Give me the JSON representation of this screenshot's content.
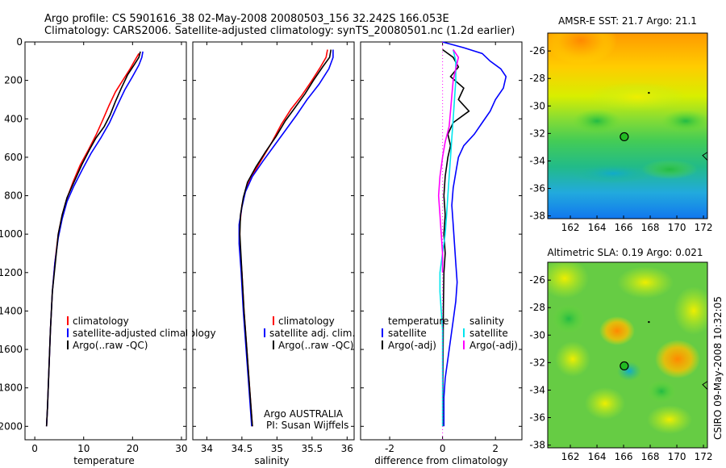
{
  "title": {
    "line1": "Argo profile: CS 5901616_38 02-May-2008 20080503_156 32.242S 166.053E",
    "line2": "Climatology: CARS2006. Satellite-adjusted climatology: synTS_20080501.nc (1.2d earlier)"
  },
  "credit": "CSIRO 09-May-2008 10:32:05",
  "colors": {
    "climatology": "#ff0000",
    "satellite": "#0000ff",
    "argo": "#000000",
    "argo_adj_salinity": "#ff00ff",
    "satellite_salinity": "#00e5ee"
  },
  "chart_data": [
    {
      "id": "temperature",
      "type": "line",
      "xlabel": "temperature",
      "ylabel": "",
      "xlim": [
        -2,
        31
      ],
      "ylim": [
        2070,
        0
      ],
      "xticks": [
        "0",
        "10",
        "20",
        "30"
      ],
      "yticks": [
        "0",
        "200",
        "400",
        "600",
        "800",
        "1000",
        "1200",
        "1400",
        "1600",
        "1800",
        "2000"
      ],
      "legend": [
        "climatology",
        "satellite-adjusted climatology",
        "Argo(..raw -QC)"
      ],
      "series": [
        {
          "name": "climatology",
          "color": "#ff0000",
          "points": [
            [
              21.3,
              60
            ],
            [
              20.6,
              90
            ],
            [
              19.5,
              140
            ],
            [
              18,
              200
            ],
            [
              16.5,
              260
            ],
            [
              15.2,
              330
            ],
            [
              14,
              400
            ],
            [
              12.6,
              480
            ],
            [
              11,
              560
            ],
            [
              9.3,
              640
            ],
            [
              7.8,
              730
            ],
            [
              6.5,
              820
            ],
            [
              5.6,
              900
            ],
            [
              4.8,
              1000
            ],
            [
              4.1,
              1150
            ],
            [
              3.6,
              1300
            ],
            [
              3.2,
              1500
            ],
            [
              2.9,
              1700
            ],
            [
              2.6,
              1900
            ],
            [
              2.4,
              2000
            ]
          ]
        },
        {
          "name": "satellite-adjusted climatology",
          "color": "#0000ff",
          "points": [
            [
              22.1,
              50
            ],
            [
              21.9,
              80
            ],
            [
              21.3,
              120
            ],
            [
              20,
              180
            ],
            [
              18.4,
              250
            ],
            [
              16.9,
              330
            ],
            [
              15.3,
              420
            ],
            [
              13.5,
              500
            ],
            [
              11.5,
              580
            ],
            [
              9.8,
              660
            ],
            [
              8,
              750
            ],
            [
              6.6,
              830
            ],
            [
              5.6,
              920
            ],
            [
              4.8,
              1020
            ],
            [
              4.1,
              1150
            ],
            [
              3.6,
              1300
            ],
            [
              3.2,
              1500
            ],
            [
              2.9,
              1700
            ],
            [
              2.6,
              1900
            ],
            [
              2.4,
              2000
            ]
          ]
        },
        {
          "name": "Argo(..raw -QC)",
          "color": "#000000",
          "points": [
            [
              21.6,
              50
            ],
            [
              21.3,
              80
            ],
            [
              20.3,
              120
            ],
            [
              19,
              170
            ],
            [
              17.7,
              240
            ],
            [
              16.5,
              310
            ],
            [
              15.4,
              380
            ],
            [
              14.2,
              440
            ],
            [
              12.5,
              500
            ],
            [
              11.2,
              560
            ],
            [
              9.6,
              640
            ],
            [
              8,
              730
            ],
            [
              6.6,
              810
            ],
            [
              5.6,
              900
            ],
            [
              4.8,
              1000
            ],
            [
              4.2,
              1150
            ],
            [
              3.6,
              1300
            ],
            [
              3.2,
              1500
            ],
            [
              2.9,
              1700
            ],
            [
              2.6,
              1900
            ],
            [
              2.4,
              2000
            ]
          ]
        }
      ]
    },
    {
      "id": "salinity",
      "type": "line",
      "xlabel": "salinity",
      "ylabel": "",
      "xlim": [
        33.8,
        36.1
      ],
      "ylim": [
        2070,
        0
      ],
      "xticks": [
        "34",
        "34.5",
        "35",
        "35.5",
        "36"
      ],
      "legend": [
        "climatology",
        "satellite adj. clim.",
        "Argo(..raw -QC)"
      ],
      "annotation": [
        "Argo AUSTRALIA",
        "PI: Susan Wijffels"
      ],
      "series": [
        {
          "name": "climatology",
          "color": "#ff0000",
          "points": [
            [
              35.72,
              40
            ],
            [
              35.7,
              80
            ],
            [
              35.62,
              130
            ],
            [
              35.5,
              200
            ],
            [
              35.35,
              280
            ],
            [
              35.2,
              350
            ],
            [
              35.06,
              430
            ],
            [
              34.93,
              520
            ],
            [
              34.8,
              600
            ],
            [
              34.67,
              680
            ],
            [
              34.56,
              760
            ],
            [
              34.5,
              850
            ],
            [
              34.47,
              950
            ],
            [
              34.47,
              1050
            ],
            [
              34.5,
              1200
            ],
            [
              34.53,
              1400
            ],
            [
              34.57,
              1600
            ],
            [
              34.61,
              1800
            ],
            [
              34.65,
              2000
            ]
          ]
        },
        {
          "name": "satellite adj. clim.",
          "color": "#0000ff",
          "points": [
            [
              35.8,
              40
            ],
            [
              35.8,
              80
            ],
            [
              35.74,
              140
            ],
            [
              35.6,
              220
            ],
            [
              35.43,
              300
            ],
            [
              35.28,
              380
            ],
            [
              35.12,
              460
            ],
            [
              34.96,
              540
            ],
            [
              34.8,
              620
            ],
            [
              34.65,
              700
            ],
            [
              34.55,
              780
            ],
            [
              34.5,
              860
            ],
            [
              34.46,
              950
            ],
            [
              34.46,
              1050
            ],
            [
              34.49,
              1200
            ],
            [
              34.52,
              1400
            ],
            [
              34.56,
              1600
            ],
            [
              34.6,
              1800
            ],
            [
              34.64,
              2000
            ]
          ]
        },
        {
          "name": "Argo(..raw -QC)",
          "color": "#000000",
          "points": [
            [
              35.77,
              40
            ],
            [
              35.75,
              80
            ],
            [
              35.65,
              130
            ],
            [
              35.52,
              200
            ],
            [
              35.4,
              270
            ],
            [
              35.26,
              340
            ],
            [
              35.12,
              410
            ],
            [
              34.99,
              490
            ],
            [
              34.84,
              570
            ],
            [
              34.7,
              650
            ],
            [
              34.58,
              730
            ],
            [
              34.52,
              810
            ],
            [
              34.48,
              900
            ],
            [
              34.47,
              1000
            ],
            [
              34.5,
              1200
            ],
            [
              34.53,
              1400
            ],
            [
              34.57,
              1600
            ],
            [
              34.61,
              1800
            ],
            [
              34.65,
              2000
            ]
          ]
        }
      ]
    },
    {
      "id": "difference",
      "type": "line",
      "xlabel": "difference from climatology",
      "ylabel": "",
      "xlim": [
        -3.1,
        3
      ],
      "ylim": [
        2070,
        0
      ],
      "xticks": [
        "-2",
        "0",
        "2"
      ],
      "legend_headers": [
        "temperature",
        "salinity"
      ],
      "legend": [
        "satellite",
        "Argo(-adj)",
        "satellite",
        "Argo(-adj)"
      ],
      "series": [
        {
          "name": "satellite",
          "color": "#0000ff",
          "points": [
            [
              0,
              0
            ],
            [
              0.8,
              30
            ],
            [
              1.5,
              60
            ],
            [
              1.8,
              100
            ],
            [
              2.2,
              140
            ],
            [
              2.4,
              180
            ],
            [
              2.3,
              240
            ],
            [
              2,
              300
            ],
            [
              1.8,
              360
            ],
            [
              1.5,
              420
            ],
            [
              1.2,
              480
            ],
            [
              0.8,
              540
            ],
            [
              0.6,
              600
            ],
            [
              0.5,
              680
            ],
            [
              0.4,
              760
            ],
            [
              0.35,
              850
            ],
            [
              0.4,
              950
            ],
            [
              0.45,
              1050
            ],
            [
              0.5,
              1150
            ],
            [
              0.55,
              1250
            ],
            [
              0.5,
              1350
            ],
            [
              0.4,
              1450
            ],
            [
              0.3,
              1550
            ],
            [
              0.2,
              1650
            ],
            [
              0.1,
              1750
            ],
            [
              0.05,
              1850
            ],
            [
              0.05,
              1950
            ],
            [
              0.05,
              2000
            ]
          ]
        },
        {
          "name": "Argo(-adj)",
          "color": "#000000",
          "points": [
            [
              0,
              40
            ],
            [
              0.4,
              80
            ],
            [
              0.6,
              130
            ],
            [
              0.3,
              180
            ],
            [
              0.8,
              240
            ],
            [
              0.6,
              300
            ],
            [
              1,
              360
            ],
            [
              0.4,
              420
            ],
            [
              0.2,
              480
            ],
            [
              0.3,
              540
            ],
            [
              0.2,
              600
            ],
            [
              0.1,
              700
            ],
            [
              0.05,
              800
            ],
            [
              0.1,
              900
            ],
            [
              0.05,
              1000
            ],
            [
              0.1,
              1100
            ],
            [
              0.05,
              1200
            ],
            [
              0.03,
              1400
            ],
            [
              0.02,
              1600
            ],
            [
              0.01,
              1800
            ],
            [
              0.01,
              2000
            ]
          ]
        },
        {
          "name": "satellite",
          "color": "#00e5ee",
          "points": [
            [
              0.4,
              40
            ],
            [
              0.5,
              100
            ],
            [
              0.5,
              200
            ],
            [
              0.45,
              300
            ],
            [
              0.4,
              400
            ],
            [
              0.35,
              500
            ],
            [
              0.3,
              600
            ],
            [
              0.25,
              700
            ],
            [
              0.2,
              800
            ],
            [
              0.15,
              900
            ],
            [
              0.1,
              1000
            ],
            [
              0,
              1100
            ],
            [
              -0.1,
              1200
            ],
            [
              -0.1,
              1300
            ],
            [
              -0.05,
              1400
            ],
            [
              0,
              1500
            ],
            [
              0,
              1700
            ],
            [
              0,
              1800
            ],
            [
              0,
              2000
            ]
          ]
        },
        {
          "name": "Argo(-adj)",
          "color": "#ff00ff",
          "points": [
            [
              0.4,
              40
            ],
            [
              0.6,
              80
            ],
            [
              0.5,
              140
            ],
            [
              0.4,
              200
            ],
            [
              0.35,
              280
            ],
            [
              0.3,
              360
            ],
            [
              0.25,
              440
            ],
            [
              0.1,
              520
            ],
            [
              0,
              600
            ],
            [
              -0.1,
              700
            ],
            [
              -0.15,
              800
            ],
            [
              -0.1,
              900
            ],
            [
              -0.05,
              1000
            ],
            [
              0,
              1100
            ],
            [
              0,
              1200
            ]
          ]
        }
      ]
    },
    {
      "id": "sst-map",
      "type": "heatmap",
      "title": "AMSR-E SST: 21.7 Argo: 21.1",
      "xlim": [
        160.3,
        172.3
      ],
      "ylim": [
        -38.2,
        -24.7
      ],
      "xticks": [
        "162",
        "164",
        "166",
        "168",
        "170",
        "172"
      ],
      "yticks": [
        "-26",
        "-28",
        "-30",
        "-32",
        "-34",
        "-36",
        "-38"
      ],
      "marker": {
        "lon": 166.05,
        "lat": -32.24
      }
    },
    {
      "id": "sla-map",
      "type": "heatmap",
      "title": "Altimetric SLA: 0.19 Argo: 0.021",
      "xlim": [
        160.3,
        172.3
      ],
      "ylim": [
        -38.2,
        -24.7
      ],
      "xticks": [
        "162",
        "164",
        "166",
        "168",
        "170",
        "172"
      ],
      "yticks": [
        "-26",
        "-28",
        "-30",
        "-32",
        "-34",
        "-36",
        "-38"
      ],
      "marker": {
        "lon": 166.05,
        "lat": -32.24
      }
    }
  ]
}
